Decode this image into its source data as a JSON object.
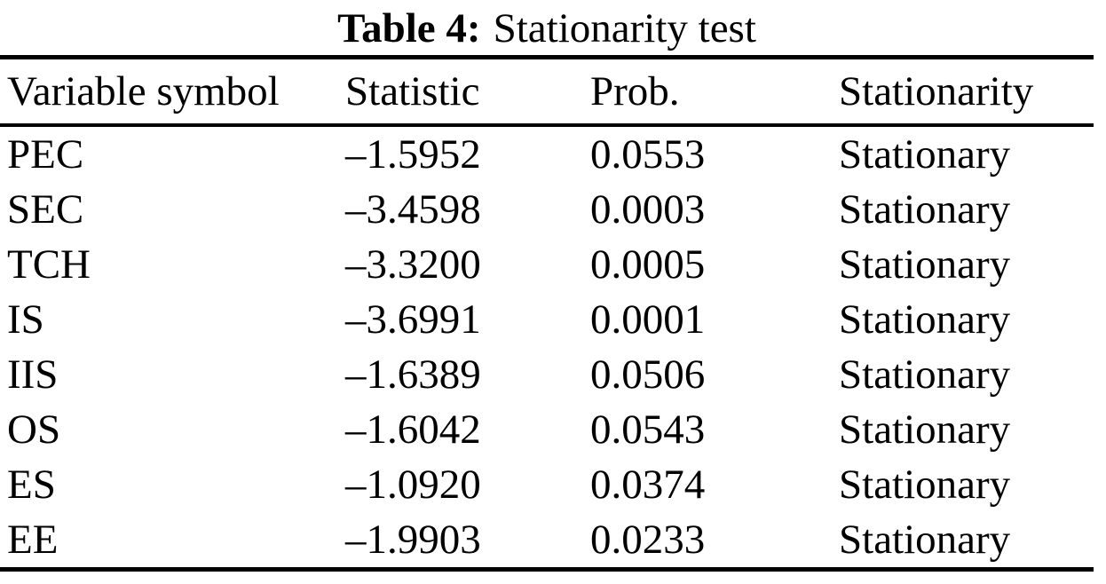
{
  "table": {
    "caption": {
      "label": "Table 4:",
      "text": "Stationarity test"
    },
    "columns": [
      "Variable symbol",
      "Statistic",
      "Prob.",
      "Stationarity"
    ],
    "rows": [
      {
        "symbol": "PEC",
        "statistic": "–1.5952",
        "prob": "0.0553",
        "stationarity": "Stationary"
      },
      {
        "symbol": "SEC",
        "statistic": "–3.4598",
        "prob": "0.0003",
        "stationarity": "Stationary"
      },
      {
        "symbol": "TCH",
        "statistic": "–3.3200",
        "prob": "0.0005",
        "stationarity": "Stationary"
      },
      {
        "symbol": "IS",
        "statistic": "–3.6991",
        "prob": "0.0001",
        "stationarity": "Stationary"
      },
      {
        "symbol": "IIS",
        "statistic": "–1.6389",
        "prob": "0.0506",
        "stationarity": "Stationary"
      },
      {
        "symbol": "OS",
        "statistic": "–1.6042",
        "prob": "0.0543",
        "stationarity": "Stationary"
      },
      {
        "symbol": "ES",
        "statistic": "–1.0920",
        "prob": "0.0374",
        "stationarity": "Stationary"
      },
      {
        "symbol": "EE",
        "statistic": "–1.9903",
        "prob": "0.0233",
        "stationarity": "Stationary"
      }
    ]
  }
}
